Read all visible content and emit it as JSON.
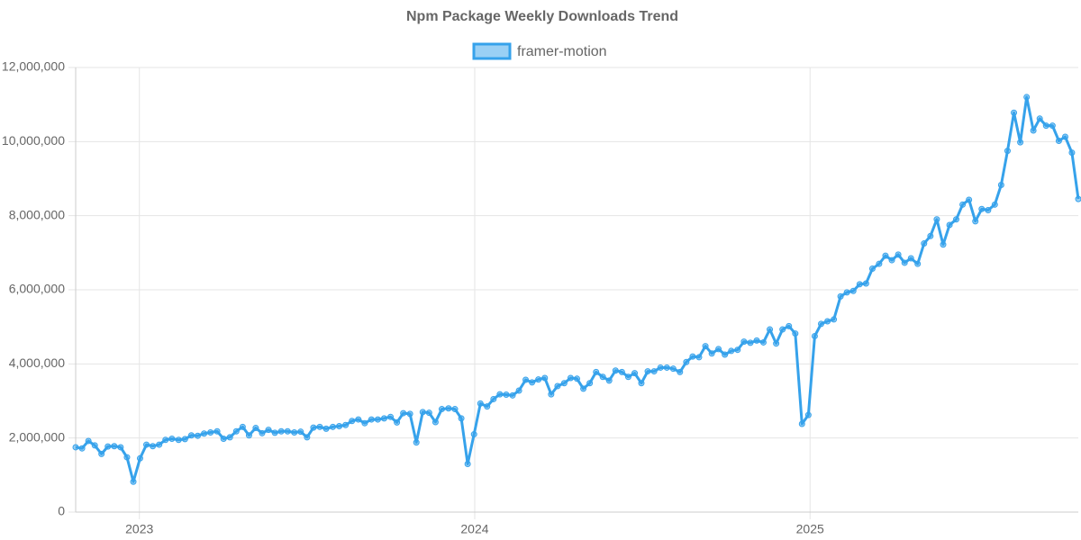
{
  "chart_data": {
    "type": "line",
    "title": "Npm Package Weekly Downloads Trend",
    "x": [
      2022.81,
      2022.829,
      2022.848,
      2022.867,
      2022.887,
      2022.906,
      2022.925,
      2022.944,
      2022.963,
      2022.982,
      2023.002,
      2023.021,
      2023.04,
      2023.059,
      2023.078,
      2023.097,
      2023.117,
      2023.136,
      2023.155,
      2023.174,
      2023.193,
      2023.212,
      2023.232,
      2023.251,
      2023.27,
      2023.289,
      2023.308,
      2023.327,
      2023.347,
      2023.366,
      2023.385,
      2023.404,
      2023.423,
      2023.442,
      2023.462,
      2023.481,
      2023.5,
      2023.519,
      2023.538,
      2023.557,
      2023.577,
      2023.596,
      2023.615,
      2023.634,
      2023.653,
      2023.672,
      2023.692,
      2023.711,
      2023.73,
      2023.749,
      2023.768,
      2023.787,
      2023.807,
      2023.826,
      2023.845,
      2023.864,
      2023.883,
      2023.902,
      2023.922,
      2023.941,
      2023.96,
      2023.979,
      2023.998,
      2024.017,
      2024.037,
      2024.056,
      2024.075,
      2024.094,
      2024.113,
      2024.132,
      2024.152,
      2024.171,
      2024.19,
      2024.209,
      2024.228,
      2024.247,
      2024.267,
      2024.286,
      2024.305,
      2024.324,
      2024.343,
      2024.362,
      2024.382,
      2024.401,
      2024.42,
      2024.439,
      2024.458,
      2024.477,
      2024.497,
      2024.516,
      2024.535,
      2024.554,
      2024.573,
      2024.592,
      2024.612,
      2024.631,
      2024.65,
      2024.669,
      2024.688,
      2024.707,
      2024.727,
      2024.746,
      2024.765,
      2024.784,
      2024.803,
      2024.822,
      2024.841,
      2024.861,
      2024.88,
      2024.899,
      2024.918,
      2024.937,
      2024.956,
      2024.976,
      2024.995,
      2025.014,
      2025.033,
      2025.052,
      2025.071,
      2025.091,
      2025.11,
      2025.129,
      2025.148,
      2025.167,
      2025.186,
      2025.206,
      2025.225,
      2025.244,
      2025.263,
      2025.282,
      2025.301,
      2025.321,
      2025.34,
      2025.359,
      2025.378,
      2025.397,
      2025.416,
      2025.436,
      2025.455,
      2025.474,
      2025.493,
      2025.512,
      2025.531,
      2025.551,
      2025.57,
      2025.589,
      2025.608,
      2025.627,
      2025.646,
      2025.666,
      2025.685,
      2025.704,
      2025.723,
      2025.742,
      2025.761,
      2025.781,
      2025.8
    ],
    "series": [
      {
        "name": "framer-motion",
        "color": "#36a2eb",
        "values": [
          1750000,
          1720000,
          1920000,
          1800000,
          1570000,
          1770000,
          1780000,
          1750000,
          1480000,
          820000,
          1450000,
          1820000,
          1780000,
          1820000,
          1950000,
          1980000,
          1950000,
          1970000,
          2070000,
          2060000,
          2120000,
          2150000,
          2180000,
          1980000,
          2020000,
          2180000,
          2300000,
          2070000,
          2270000,
          2130000,
          2220000,
          2140000,
          2180000,
          2180000,
          2150000,
          2170000,
          2020000,
          2280000,
          2300000,
          2250000,
          2300000,
          2320000,
          2350000,
          2460000,
          2500000,
          2400000,
          2500000,
          2500000,
          2530000,
          2570000,
          2420000,
          2670000,
          2650000,
          1880000,
          2700000,
          2680000,
          2430000,
          2780000,
          2800000,
          2780000,
          2530000,
          1300000,
          2100000,
          2930000,
          2850000,
          3050000,
          3180000,
          3170000,
          3150000,
          3280000,
          3570000,
          3500000,
          3580000,
          3620000,
          3180000,
          3400000,
          3480000,
          3620000,
          3600000,
          3330000,
          3480000,
          3780000,
          3650000,
          3550000,
          3820000,
          3780000,
          3650000,
          3750000,
          3480000,
          3800000,
          3800000,
          3900000,
          3900000,
          3870000,
          3780000,
          4050000,
          4200000,
          4180000,
          4480000,
          4280000,
          4400000,
          4250000,
          4350000,
          4380000,
          4600000,
          4570000,
          4630000,
          4580000,
          4930000,
          4550000,
          4930000,
          5020000,
          4820000,
          2380000,
          2620000,
          4750000,
          5080000,
          5150000,
          5200000,
          5820000,
          5930000,
          5970000,
          6150000,
          6170000,
          6570000,
          6700000,
          6920000,
          6800000,
          6950000,
          6730000,
          6850000,
          6700000,
          7250000,
          7450000,
          7900000,
          7220000,
          7750000,
          7900000,
          8300000,
          8430000,
          7850000,
          8180000,
          8150000,
          8300000,
          8830000,
          9750000,
          10780000,
          9980000,
          11200000,
          10300000,
          10620000,
          10430000,
          10430000,
          10020000,
          10130000,
          9700000,
          8450000
        ]
      }
    ],
    "xlim": [
      2022.81,
      2025.8
    ],
    "xticks": [
      2023,
      2024,
      2025
    ],
    "ylim": [
      0,
      12000000
    ],
    "yticks": [
      0,
      {
        "value": 2000000,
        "label": "2,000,000"
      },
      {
        "value": 4000000,
        "label": "4,000,000"
      },
      {
        "value": 6000000,
        "label": "6,000,000"
      },
      {
        "value": 8000000,
        "label": "8,000,000"
      },
      {
        "value": 10000000,
        "label": "10,000,000"
      },
      {
        "value": 12000000,
        "label": "12,000,000"
      }
    ],
    "grid": true,
    "legend": "top"
  }
}
